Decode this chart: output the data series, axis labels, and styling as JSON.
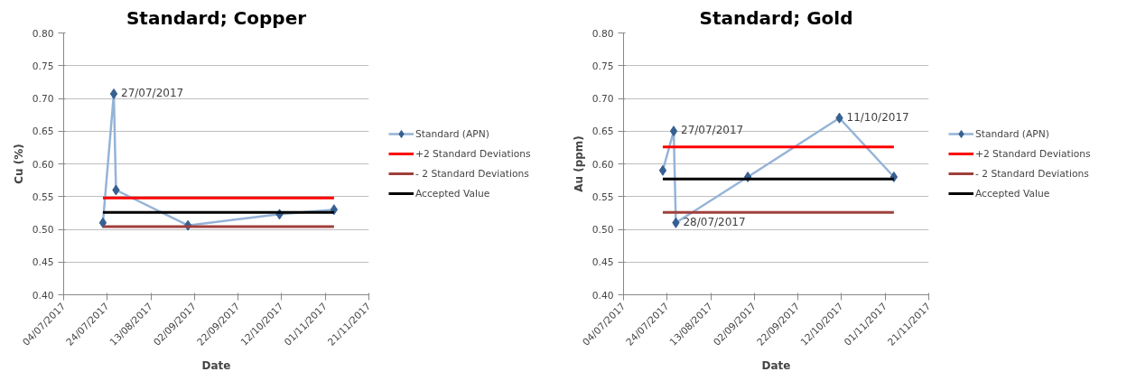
{
  "chart_data": [
    {
      "type": "line",
      "title": "Standard; Copper",
      "xlabel": "Date",
      "ylabel": "Cu (%)",
      "legend": "right",
      "grid": "y",
      "xlim": [
        "2017-07-04",
        "2017-11-21"
      ],
      "xticks": [
        {
          "value": "2017-07-04",
          "label": "04/07/2017"
        },
        {
          "value": "2017-07-24",
          "label": "24/07/2017"
        },
        {
          "value": "2017-08-13",
          "label": "13/08/2017"
        },
        {
          "value": "2017-09-02",
          "label": "02/09/2017"
        },
        {
          "value": "2017-09-22",
          "label": "22/09/2017"
        },
        {
          "value": "2017-10-12",
          "label": "12/10/2017"
        },
        {
          "value": "2017-11-01",
          "label": "01/11/2017"
        },
        {
          "value": "2017-11-21",
          "label": "21/11/2017"
        }
      ],
      "ylim": [
        0.4,
        0.8
      ],
      "yticks": [
        {
          "value": 0.4,
          "label": "0.40"
        },
        {
          "value": 0.45,
          "label": "0.45"
        },
        {
          "value": 0.5,
          "label": "0.50"
        },
        {
          "value": 0.55,
          "label": "0.55"
        },
        {
          "value": 0.6,
          "label": "0.60"
        },
        {
          "value": 0.65,
          "label": "0.65"
        },
        {
          "value": 0.7,
          "label": "0.70"
        },
        {
          "value": 0.75,
          "label": "0.75"
        },
        {
          "value": 0.8,
          "label": "0.80"
        }
      ],
      "series": [
        {
          "name": "Standard (APN)",
          "color": "#95b3d7",
          "marker": "diamond",
          "x": [
            "2017-07-22",
            "2017-07-27",
            "2017-07-28",
            "2017-08-30",
            "2017-10-11",
            "2017-11-05"
          ],
          "values": [
            0.51,
            0.707,
            0.56,
            0.506,
            0.523,
            0.53
          ]
        },
        {
          "name": "+2 Standard Deviations",
          "color": "#ff0000",
          "x": [
            "2017-07-22",
            "2017-11-05"
          ],
          "values": [
            0.548,
            0.548
          ]
        },
        {
          "name": "- 2 Standard Deviations",
          "color": "#a0403c",
          "x": [
            "2017-07-22",
            "2017-11-05"
          ],
          "values": [
            0.504,
            0.504
          ]
        },
        {
          "name": "Accepted Value",
          "color": "#000000",
          "x": [
            "2017-07-22",
            "2017-11-05"
          ],
          "values": [
            0.526,
            0.526
          ]
        }
      ],
      "annotations": [
        {
          "text": "27/07/2017",
          "x": "2017-07-27",
          "y": 0.707
        }
      ]
    },
    {
      "type": "line",
      "title": "Standard; Gold",
      "xlabel": "Date",
      "ylabel": "Au (ppm)",
      "legend": "right",
      "grid": "y",
      "xlim": [
        "2017-07-04",
        "2017-11-21"
      ],
      "xticks": [
        {
          "value": "2017-07-04",
          "label": "04/07/2017"
        },
        {
          "value": "2017-07-24",
          "label": "24/07/2017"
        },
        {
          "value": "2017-08-13",
          "label": "13/08/2017"
        },
        {
          "value": "2017-09-02",
          "label": "02/09/2017"
        },
        {
          "value": "2017-09-22",
          "label": "22/09/2017"
        },
        {
          "value": "2017-10-12",
          "label": "12/10/2017"
        },
        {
          "value": "2017-11-01",
          "label": "01/11/2017"
        },
        {
          "value": "2017-11-21",
          "label": "21/11/2017"
        }
      ],
      "ylim": [
        0.4,
        0.8
      ],
      "yticks": [
        {
          "value": 0.4,
          "label": "0.40"
        },
        {
          "value": 0.45,
          "label": "0.45"
        },
        {
          "value": 0.5,
          "label": "0.50"
        },
        {
          "value": 0.55,
          "label": "0.55"
        },
        {
          "value": 0.6,
          "label": "0.60"
        },
        {
          "value": 0.65,
          "label": "0.65"
        },
        {
          "value": 0.7,
          "label": "0.70"
        },
        {
          "value": 0.75,
          "label": "0.75"
        },
        {
          "value": 0.8,
          "label": "0.80"
        }
      ],
      "series": [
        {
          "name": "Standard (APN)",
          "color": "#95b3d7",
          "marker": "diamond",
          "x": [
            "2017-07-22",
            "2017-07-27",
            "2017-07-28",
            "2017-08-30",
            "2017-10-11",
            "2017-11-05"
          ],
          "values": [
            0.59,
            0.65,
            0.51,
            0.58,
            0.67,
            0.58
          ]
        },
        {
          "name": "+2 Standard Deviations",
          "color": "#ff0000",
          "x": [
            "2017-07-22",
            "2017-11-05"
          ],
          "values": [
            0.626,
            0.626
          ]
        },
        {
          "name": "- 2 Standard Deviations",
          "color": "#a0403c",
          "x": [
            "2017-07-22",
            "2017-11-05"
          ],
          "values": [
            0.526,
            0.526
          ]
        },
        {
          "name": "Accepted Value",
          "color": "#000000",
          "x": [
            "2017-07-22",
            "2017-11-05"
          ],
          "values": [
            0.577,
            0.577
          ]
        }
      ],
      "annotations": [
        {
          "text": "27/07/2017",
          "x": "2017-07-27",
          "y": 0.65
        },
        {
          "text": "28/07/2017",
          "x": "2017-07-28",
          "y": 0.51
        },
        {
          "text": "11/10/2017",
          "x": "2017-10-11",
          "y": 0.67
        }
      ]
    }
  ]
}
